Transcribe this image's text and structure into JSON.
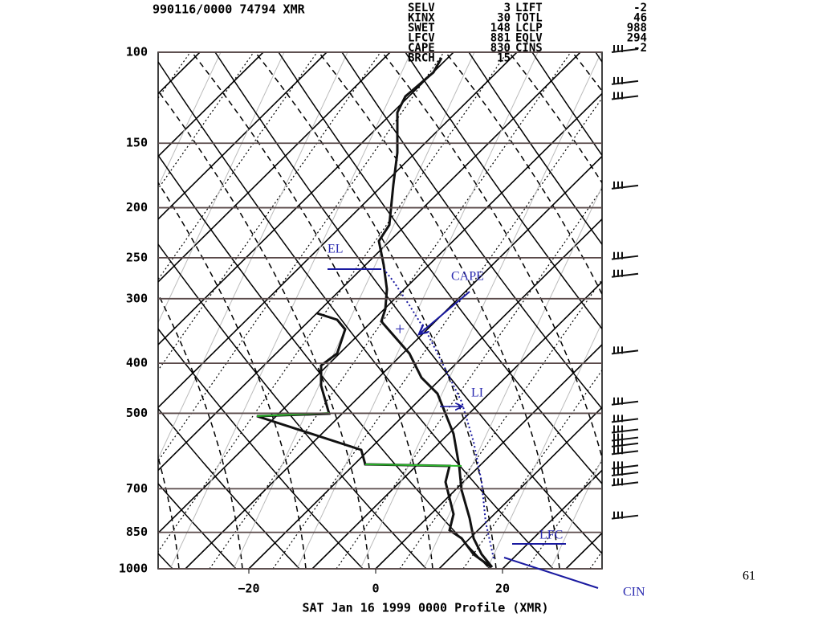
{
  "header": "990116/0000 74794 XMR",
  "indices": [
    [
      "SELV",
      "3",
      "LIFT",
      "-2"
    ],
    [
      "KINX",
      "30",
      "TOTL",
      "46"
    ],
    [
      "SWET",
      "148",
      "LCLP",
      "988"
    ],
    [
      "LFCV",
      "881",
      "EQLV",
      "294"
    ],
    [
      "CAPE",
      "830",
      "CINS",
      "-2"
    ],
    [
      "BRCH",
      "15"
    ]
  ],
  "pressure_labels": [
    100,
    150,
    200,
    250,
    300,
    400,
    500,
    700,
    850,
    1000
  ],
  "temperature_labels": [
    {
      "value": -20,
      "label": "−20"
    },
    {
      "value": 0,
      "label": "0"
    },
    {
      "value": 20,
      "label": "20"
    }
  ],
  "footer": "SAT Jan 16 1999 0000 Profile (XMR)",
  "annotations": {
    "el": "EL",
    "cape": "CAPE",
    "li": "LI",
    "lfc": "LFC",
    "cin": "CIN"
  },
  "page_number": "61"
}
